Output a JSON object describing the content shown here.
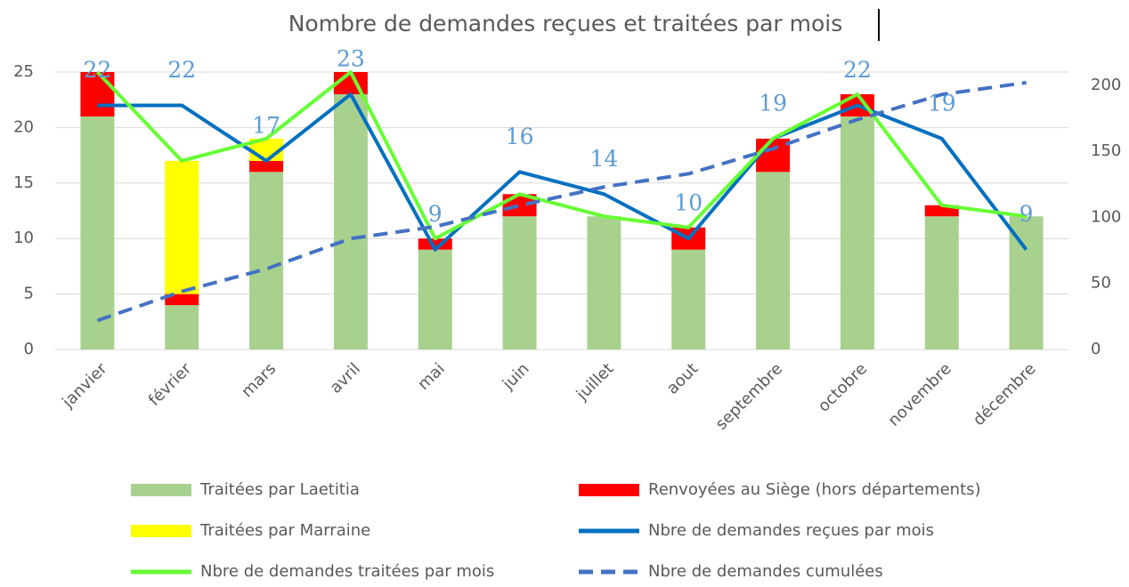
{
  "chart_data": {
    "type": "bar",
    "title": "Nombre de demandes reçues et traitées par mois",
    "categories": [
      "janvier",
      "février",
      "mars",
      "avril",
      "mai",
      "juin",
      "juillet",
      "aout",
      "septembre",
      "octobre",
      "novembre",
      "décembre"
    ],
    "series": [
      {
        "name": "Traitées par Laetitia",
        "kind": "bar",
        "color": "#a9d18e",
        "values": [
          21,
          4,
          16,
          23,
          9,
          12,
          12,
          9,
          16,
          21,
          12,
          12
        ]
      },
      {
        "name": "Renvoyées au Siège (hors départements)",
        "kind": "bar",
        "color": "#ff0000",
        "values": [
          4,
          1,
          1,
          2,
          1,
          2,
          0,
          2,
          3,
          2,
          1,
          0
        ]
      },
      {
        "name": "Traitées par Marraine",
        "kind": "bar",
        "color": "#ffff00",
        "values": [
          0,
          12,
          2,
          0,
          0,
          0,
          0,
          0,
          0,
          0,
          0,
          0
        ]
      },
      {
        "name": "Nbre de demandes reçues par mois",
        "kind": "line",
        "color": "#0070c0",
        "data_labels": true,
        "values": [
          22,
          22,
          17,
          23,
          9,
          16,
          14,
          10,
          19,
          22,
          19,
          9
        ]
      },
      {
        "name": "Nbre de demandes traitées par mois",
        "kind": "line",
        "color": "#66ff33",
        "values": [
          25,
          17,
          19,
          25,
          10,
          14,
          12,
          11,
          19,
          23,
          13,
          12
        ]
      },
      {
        "name": "Nbre de demandes cumulées",
        "kind": "line",
        "color": "#4472c4",
        "dashed": true,
        "axis": "y2",
        "values": [
          22,
          44,
          61,
          84,
          93,
          109,
          123,
          133,
          152,
          174,
          193,
          202
        ]
      }
    ],
    "ylim": [
      0,
      25
    ],
    "yticks": [
      0,
      5,
      10,
      15,
      20,
      25
    ],
    "y2lim": [
      0,
      210
    ],
    "y2ticks": [
      0,
      50,
      100,
      150,
      200
    ],
    "grid": true,
    "legend": "bottom"
  }
}
